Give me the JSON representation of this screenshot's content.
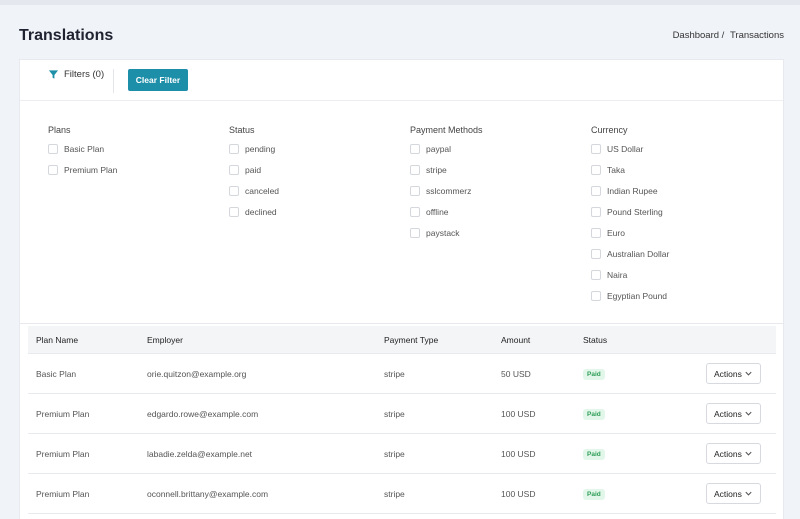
{
  "header": {
    "title": "Translations",
    "breadcrumb": {
      "home": "Dashboard /",
      "current": "Transactions"
    }
  },
  "filter_bar": {
    "filters_label": "Filters (0)",
    "clear_label": "Clear Filter"
  },
  "filter_groups": [
    {
      "title": "Plans",
      "options": [
        "Basic Plan",
        "Premium Plan"
      ]
    },
    {
      "title": "Status",
      "options": [
        "pending",
        "paid",
        "canceled",
        "declined"
      ]
    },
    {
      "title": "Payment Methods",
      "options": [
        "paypal",
        "stripe",
        "sslcommerz",
        "offline",
        "paystack"
      ]
    },
    {
      "title": "Currency",
      "options": [
        "US Dollar",
        "Taka",
        "Indian Rupee",
        "Pound Sterling",
        "Euro",
        "Australian Dollar",
        "Naira",
        "Egyptian Pound"
      ]
    }
  ],
  "table": {
    "columns": [
      "Plan Name",
      "Employer",
      "Payment Type",
      "Amount",
      "Status"
    ],
    "rows": [
      {
        "plan": "Basic Plan",
        "employer": "orie.quitzon@example.org",
        "payment": "stripe",
        "amount": "50 USD",
        "status": "Paid",
        "action": "Actions"
      },
      {
        "plan": "Premium Plan",
        "employer": "edgardo.rowe@example.com",
        "payment": "stripe",
        "amount": "100 USD",
        "status": "Paid",
        "action": "Actions"
      },
      {
        "plan": "Premium Plan",
        "employer": "labadie.zelda@example.net",
        "payment": "stripe",
        "amount": "100 USD",
        "status": "Paid",
        "action": "Actions"
      },
      {
        "plan": "Premium Plan",
        "employer": "oconnell.brittany@example.com",
        "payment": "stripe",
        "amount": "100 USD",
        "status": "Paid",
        "action": "Actions"
      }
    ]
  },
  "colors": {
    "accent": "#1e8fa8",
    "paid_text": "#2e9e55",
    "paid_bg": "#e3f6ea",
    "page_bg": "#f0f3f8"
  },
  "icons": {
    "filter": "filter-funnel-icon",
    "dropdown": "chevron-down-icon"
  }
}
